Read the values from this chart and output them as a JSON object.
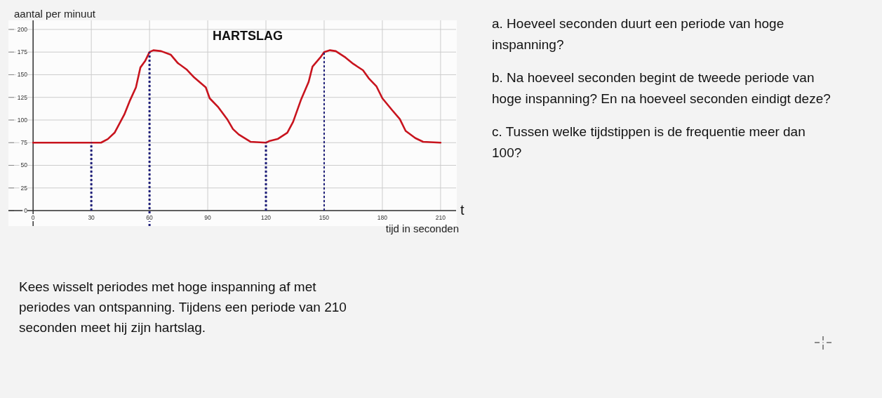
{
  "chart_data": {
    "type": "line",
    "title": "HARTSLAG",
    "xlabel": "tijd in seconden",
    "ylabel": "aantal per minuut",
    "annotations": [
      "t",
      "a. Hoeveel seconden duurt een periode van hoge inspanning?",
      "b. Na hoeveel seconden begint de tweede periode van hoge inspanning? En na hoeveel seconden eindigt deze?",
      "c. Tussen welke tijdstippen is de frequentie meer dan 100?",
      "Kees wisselt periodes met hoge inspanning af met periodes van ontspanning. Tijdens een periode van 210 seconden meet hij zijn hartslag."
    ],
    "x": [
      0,
      35,
      38.5,
      42,
      44.5,
      47,
      50,
      53,
      55.3,
      57.7,
      60,
      62,
      66,
      71,
      74.5,
      79,
      83,
      89,
      91,
      95.5,
      100,
      103,
      106,
      112,
      120,
      122,
      126,
      131,
      134,
      138,
      142,
      144,
      148,
      150,
      153,
      156,
      161,
      165,
      170,
      173,
      177,
      180,
      185,
      189,
      192,
      197,
      201,
      210
    ],
    "series": [
      {
        "color": "#c8141e",
        "values": [
          75,
          75,
          79,
          86,
          96,
          106,
          122,
          136,
          158,
          165,
          175,
          177,
          176,
          172,
          163,
          156,
          147,
          136,
          124,
          114,
          101,
          90,
          84,
          76,
          75,
          77,
          79,
          86,
          98,
          122,
          142,
          159,
          169,
          175,
          177,
          176,
          169,
          162,
          155,
          146,
          137,
          124,
          111,
          101,
          88,
          80,
          76,
          75
        ]
      }
    ],
    "xlim": [
      -12,
      218
    ],
    "ylim": [
      -17,
      210
    ],
    "xticks": [
      0,
      30,
      60,
      90,
      120,
      150,
      180,
      210
    ],
    "yticks": [
      0,
      25,
      50,
      75,
      100,
      125,
      150,
      175,
      200
    ],
    "grid": true,
    "ref_lines": [
      {
        "axis": "x",
        "value": 30,
        "color": "#1f1f7a",
        "line_style": "dotted"
      },
      {
        "axis": "x",
        "value": 60,
        "color": "#1f1f7a",
        "line_style": "dotted"
      },
      {
        "axis": "x",
        "value": 120,
        "color": "#1f1f7a",
        "line_style": "dotted"
      },
      {
        "axis": "x",
        "value": 150,
        "color": "#1f1f7a",
        "line_style": "dotted"
      }
    ]
  }
}
